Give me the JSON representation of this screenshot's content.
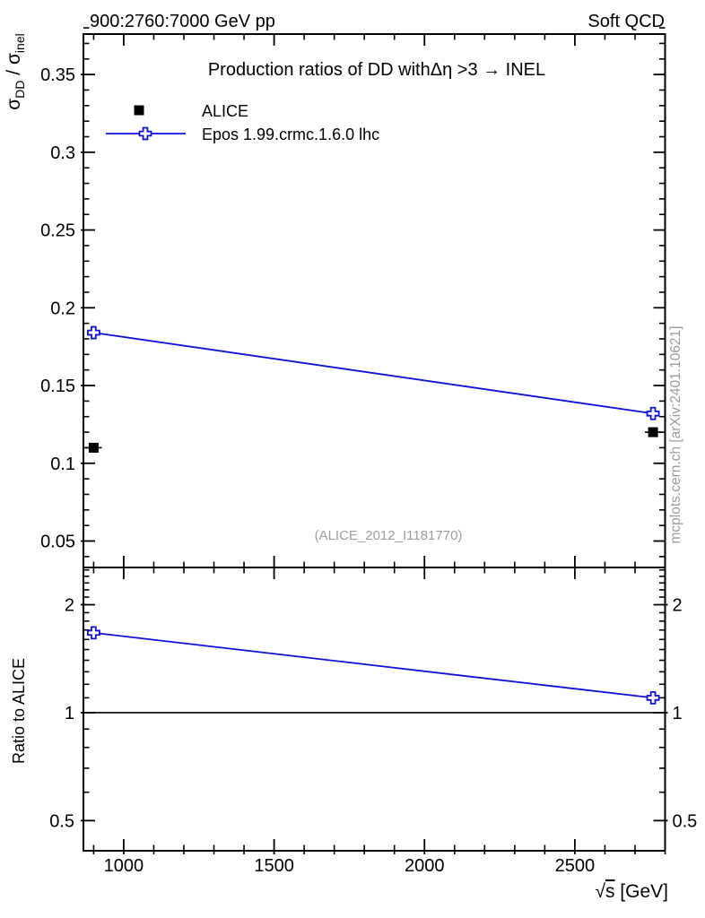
{
  "header": {
    "left": "900:2760:7000 GeV pp",
    "right": "Soft QCD"
  },
  "main_panel": {
    "title": "Production ratios of DD withΔη >3 → INEL",
    "watermark": "(ALICE_2012_I1181770)",
    "y_axis_title": {
      "sigma1": "σ",
      "sub1": "DD",
      "divider": " / ",
      "sigma2": "σ",
      "sub2": "inel"
    }
  },
  "ratio_panel": {
    "y_axis_title": "Ratio to ALICE"
  },
  "x_axis": {
    "title_root": "√",
    "title_s": "s",
    "title_unit": " [GeV]"
  },
  "legend": {
    "items": [
      {
        "label": "ALICE",
        "marker": "filled-square",
        "color": "#000000"
      },
      {
        "label": "Epos 1.99.crmc.1.6.0 lhc",
        "marker": "open-cross-line",
        "color": "#0f0fde"
      }
    ]
  },
  "side_note": "mcplots.cern.ch [arXiv:2401.10621]",
  "colors": {
    "axis": "#000000",
    "alice": "#000000",
    "epos": "#0f0fde",
    "gray_text": "#9c9c9c",
    "background": "#ffffff"
  },
  "chart_data": {
    "type": "line",
    "title": "Production ratios of DD with Δη>3 → INEL vs √s",
    "xlabel": "√s [GeV]",
    "xlim": [
      866,
      2800
    ],
    "x_ticks": [
      1000,
      1500,
      2000,
      2500
    ],
    "x_minor_step": 100,
    "grid": false,
    "legend_position": "top-left",
    "panels": [
      {
        "name": "main",
        "ylabel": "σ_DD / σ_inel",
        "yscale": "linear",
        "ylim": [
          0.033,
          0.376
        ],
        "y_ticks": [
          0.05,
          0.1,
          0.15,
          0.2,
          0.25,
          0.3,
          0.35
        ],
        "y_minor_step": 0.01,
        "series": [
          {
            "name": "ALICE",
            "type": "scatter",
            "marker": "filled-square",
            "color": "#000000",
            "x": [
              900,
              2760
            ],
            "y": [
              0.11,
              0.12
            ],
            "xerr": [
              27,
              27
            ]
          },
          {
            "name": "Epos 1.99.crmc.1.6.0 lhc",
            "type": "line-marker",
            "marker": "open-cross",
            "color": "#0f0fde",
            "x": [
              900,
              2760
            ],
            "y": [
              0.184,
              0.132
            ]
          }
        ]
      },
      {
        "name": "ratio",
        "ylabel": "Ratio to ALICE",
        "yscale": "log",
        "ylim": [
          0.412,
          2.54
        ],
        "y_ticks": [
          0.5,
          1,
          2
        ],
        "reference_line": 1,
        "series": [
          {
            "name": "Epos 1.99.crmc.1.6.0 lhc / ALICE",
            "type": "line-marker",
            "marker": "open-cross",
            "color": "#0f0fde",
            "x": [
              900,
              2760
            ],
            "y": [
              1.67,
              1.1
            ]
          }
        ]
      }
    ]
  }
}
